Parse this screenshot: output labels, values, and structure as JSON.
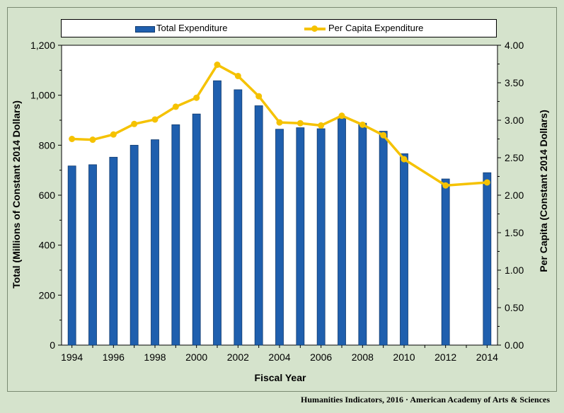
{
  "legend": {
    "total_label": "Total Expenditure",
    "per_capita_label": "Per Capita Expenditure"
  },
  "footer": "Humanities Indicators, 2016 · American Academy of Arts & Sciences",
  "colors": {
    "bar": "#1f5fae",
    "bar_edge": "#0f3a6e",
    "line": "#f5c200",
    "plot_bg": "#ffffff",
    "page_bg": "#d5e3cc"
  },
  "chart_data": {
    "type": "bar",
    "title": "",
    "xlabel": "Fiscal Year",
    "ylabel": "Total (Millions of Constant 2014 Dollars)",
    "y2label": "Per Capita (Constant 2014 Dollars)",
    "ylim": [
      0,
      1200
    ],
    "y2lim": [
      0,
      4.0
    ],
    "grid": false,
    "legend_position": "top",
    "x_tick_labels": [
      "1994",
      "1996",
      "1998",
      "2000",
      "2002",
      "2004",
      "2006",
      "2008",
      "2010",
      "2012",
      "2014"
    ],
    "y_tick_labels": [
      "0",
      "200",
      "400",
      "600",
      "800",
      "1,000",
      "1,200"
    ],
    "y2_tick_labels": [
      "0.00",
      "0.50",
      "1.00",
      "1.50",
      "2.00",
      "2.50",
      "3.00",
      "3.50",
      "4.00"
    ],
    "categories": [
      1994,
      1995,
      1996,
      1997,
      1998,
      1999,
      2000,
      2001,
      2002,
      2003,
      2004,
      2005,
      2006,
      2007,
      2008,
      2009,
      2010,
      2011,
      2012,
      2013,
      2014
    ],
    "series": [
      {
        "name": "Total Expenditure",
        "kind": "bar",
        "axis": "left",
        "values": [
          717,
          722,
          752,
          800,
          822,
          882,
          925,
          1058,
          1022,
          958,
          864,
          870,
          866,
          910,
          888,
          856,
          766,
          null,
          665,
          null,
          690
        ]
      },
      {
        "name": "Per Capita Expenditure",
        "kind": "line",
        "axis": "right",
        "x": [
          1994,
          1995,
          1996,
          1997,
          1998,
          1999,
          2000,
          2001,
          2002,
          2003,
          2004,
          2005,
          2006,
          2007,
          2008,
          2009,
          2010,
          2012,
          2014
        ],
        "values": [
          2.75,
          2.74,
          2.81,
          2.95,
          3.01,
          3.18,
          3.3,
          3.74,
          3.59,
          3.32,
          2.97,
          2.96,
          2.93,
          3.06,
          2.94,
          2.8,
          2.48,
          2.13,
          2.17
        ]
      }
    ]
  }
}
